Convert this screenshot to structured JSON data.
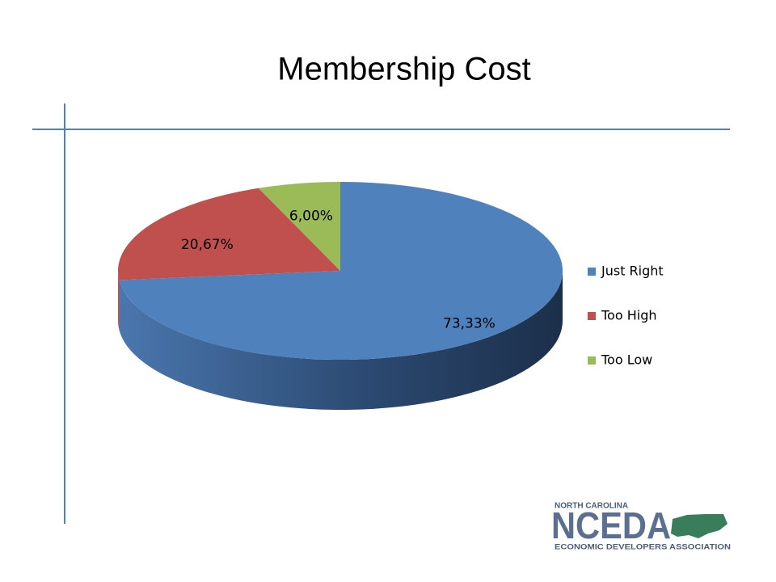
{
  "chart_data": {
    "type": "pie",
    "title": "Membership Cost",
    "categories": [
      "Just Right",
      "Too High",
      "Too Low"
    ],
    "values": [
      73.33,
      20.67,
      6.0
    ],
    "value_labels": [
      "73,33%",
      "20,67%",
      "6,00%"
    ],
    "colors": [
      "#4f81bd",
      "#c0504d",
      "#9bbb59"
    ],
    "legend": "right"
  },
  "logo": {
    "top": "NORTH CAROLINA",
    "name": "NCEDA",
    "bottom": "ECONOMIC DEVELOPERS ASSOCIATION"
  }
}
